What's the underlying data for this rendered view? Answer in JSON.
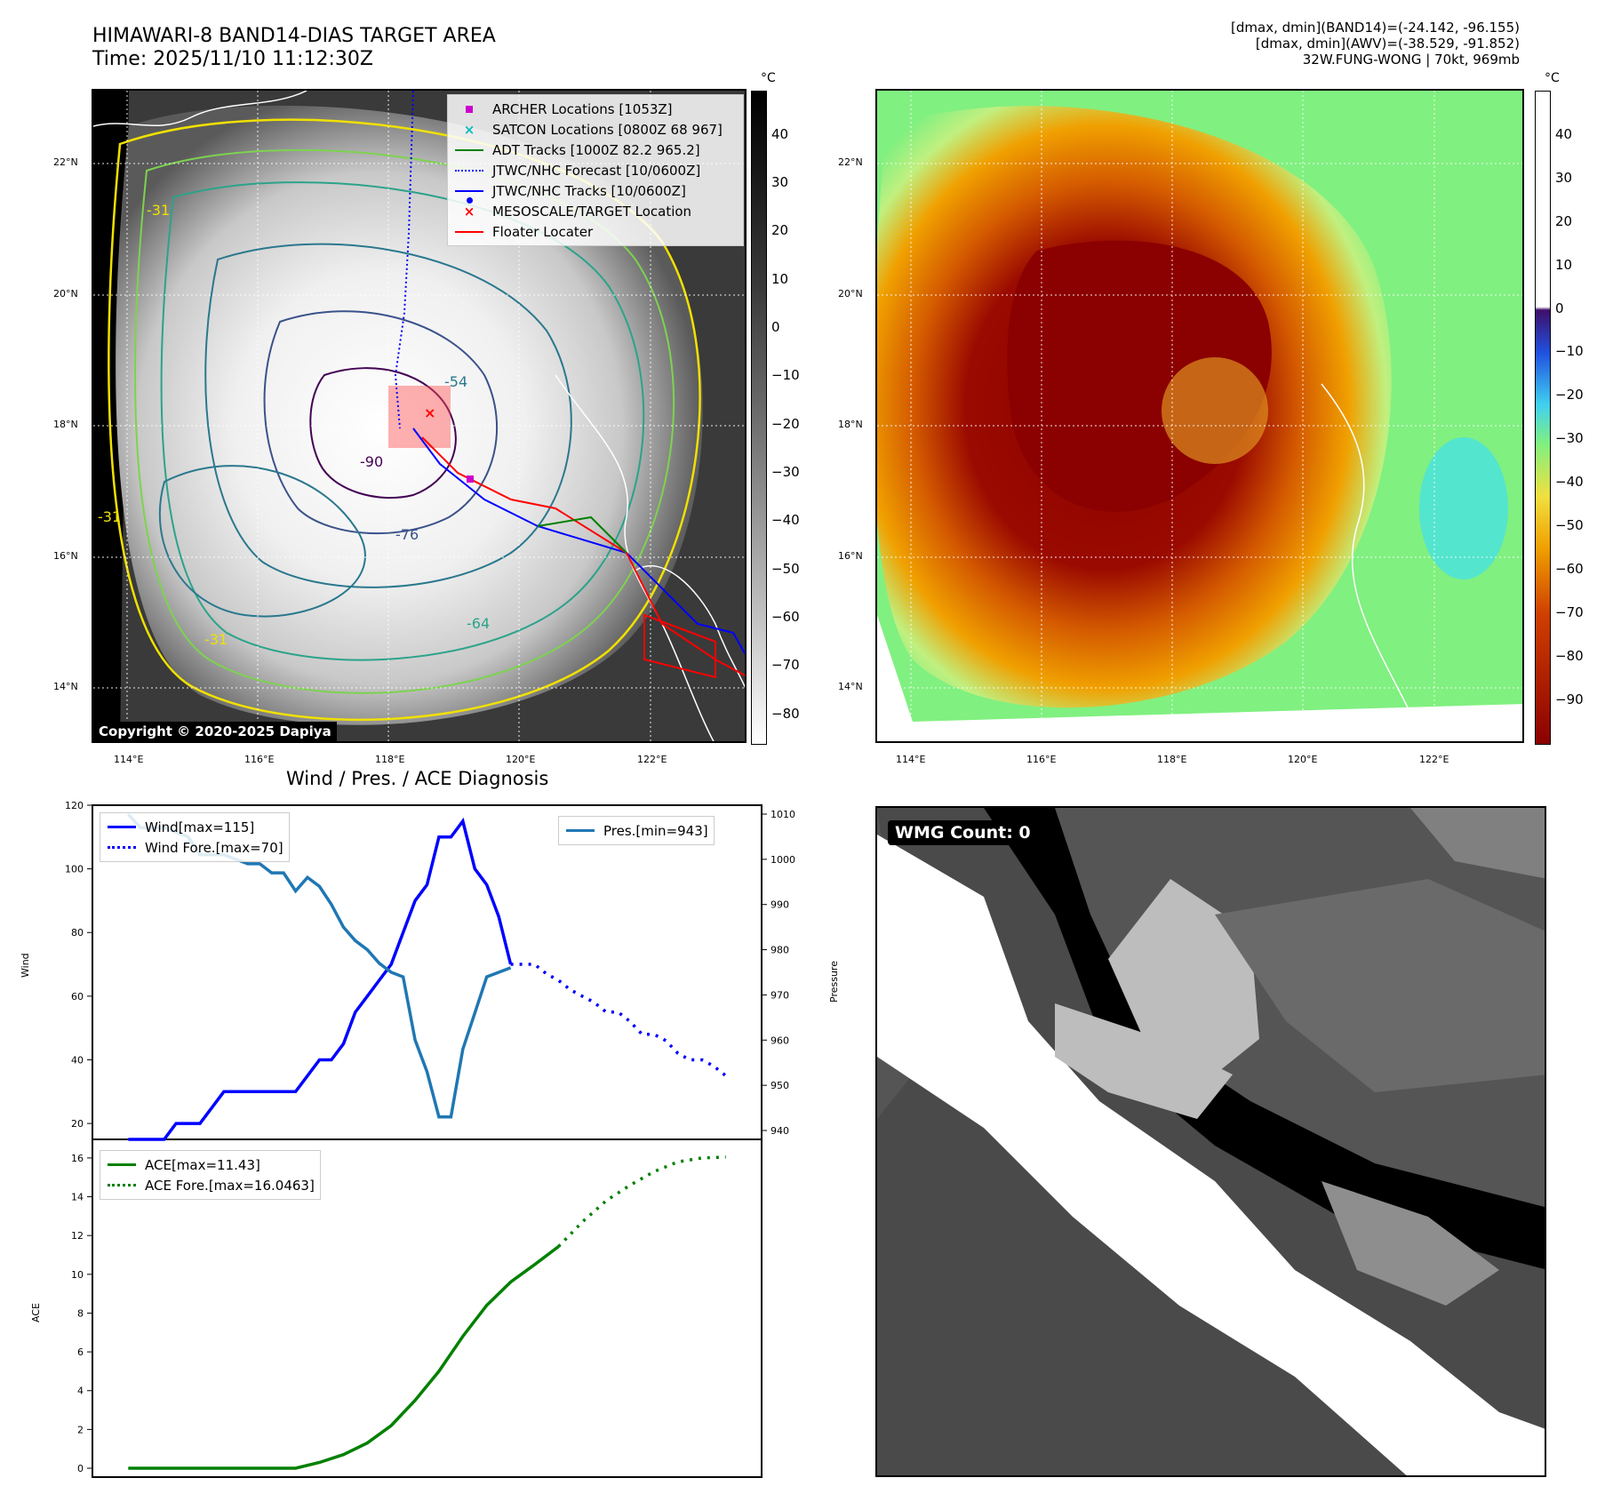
{
  "header": {
    "title_line1": "HIMAWARI-8 BAND14-DIAS TARGET AREA",
    "title_line2": "Time: 2025/11/10 11:12:30Z",
    "info_line1": "[dmax, dmin](BAND14)=(-24.142, -96.155)",
    "info_line2": "[dmax, dmin](AWV)=(-38.529, -91.852)",
    "info_line3": "32W.FUNG-WONG | 70kt, 969mb"
  },
  "map_axes": {
    "lat_labels": [
      "22°N",
      "20°N",
      "18°N",
      "16°N",
      "14°N"
    ],
    "lon_labels": [
      "114°E",
      "116°E",
      "118°E",
      "120°E",
      "122°E"
    ]
  },
  "left_map": {
    "colorbar_unit": "°C",
    "colorbar_ticks": [
      "40",
      "30",
      "20",
      "10",
      "0",
      "−10",
      "−20",
      "−30",
      "−40",
      "−50",
      "−60",
      "−70",
      "−80"
    ],
    "contour_labels": [
      "-31",
      "-54",
      "-76",
      "-90",
      "-64",
      "-31",
      "-31"
    ],
    "copyright": "Copyright © 2020-2025 Dapiya",
    "legend": [
      {
        "label": "ARCHER Locations [1053Z]",
        "color": "#cc00cc",
        "marker": "square"
      },
      {
        "label": "SATCON Locations [0800Z 68 967]",
        "color": "#00bbbb",
        "marker": "x"
      },
      {
        "label": "ADT Tracks [1000Z 82.2 965.2]",
        "color": "#008000",
        "marker": "line"
      },
      {
        "label": "JTWC/NHC Forecast [10/0600Z]",
        "color": "#0000ff",
        "marker": "dotted"
      },
      {
        "label": "JTWC/NHC Tracks [10/0600Z]",
        "color": "#0000ff",
        "marker": "line-dot"
      },
      {
        "label": "MESOSCALE/TARGET Location",
        "color": "#ff0000",
        "marker": "x"
      },
      {
        "label": "Floater Locater",
        "color": "#ff0000",
        "marker": "line"
      }
    ]
  },
  "right_map": {
    "colorbar_unit": "°C",
    "colorbar_ticks": [
      "40",
      "30",
      "20",
      "10",
      "0",
      "−10",
      "−20",
      "−30",
      "−40",
      "−50",
      "−60",
      "−70",
      "−80",
      "−90"
    ]
  },
  "diagnosis": {
    "title": "Wind / Pres. / ACE Diagnosis",
    "wind_axis_label": "Wind",
    "pressure_axis_label": "Pressure",
    "ace_axis_label": "ACE",
    "wind_ticks": [
      "120",
      "100",
      "80",
      "60",
      "40",
      "20"
    ],
    "pressure_ticks": [
      "1010",
      "1000",
      "990",
      "980",
      "970",
      "960",
      "950",
      "940"
    ],
    "ace_ticks": [
      "16",
      "14",
      "12",
      "10",
      "8",
      "6",
      "4",
      "2",
      "0"
    ],
    "legend_wind": "Wind[max=115]",
    "legend_wind_fore": "Wind Fore.[max=70]",
    "legend_pres": "Pres.[min=943]",
    "legend_ace": "ACE[max=11.43]",
    "legend_ace_fore": "ACE Fore.[max=16.0463]"
  },
  "wmg": {
    "label": "WMG Count: 0"
  },
  "chart_data": [
    {
      "type": "line",
      "title": "Wind / Pres. / ACE Diagnosis",
      "ylabel": "Wind",
      "ylim": [
        15,
        120
      ],
      "x": [
        0,
        1,
        2,
        3,
        4,
        5,
        6,
        7,
        8,
        9,
        10,
        11,
        12,
        13,
        14,
        15,
        16,
        17,
        18,
        19,
        20,
        21,
        22,
        23,
        24,
        25,
        26,
        27,
        28,
        29,
        30,
        31,
        32,
        33,
        34,
        35,
        36,
        37,
        38,
        39,
        40,
        41,
        42,
        43,
        44,
        45,
        46,
        47,
        48,
        49,
        50
      ],
      "series": [
        {
          "name": "Wind[max=115]",
          "color": "#0000ff",
          "values": [
            15,
            15,
            15,
            15,
            20,
            20,
            20,
            25,
            30,
            30,
            30,
            30,
            30,
            30,
            30,
            35,
            40,
            40,
            45,
            55,
            60,
            65,
            70,
            80,
            90,
            95,
            110,
            110,
            115,
            100,
            95,
            85,
            70,
            null,
            null,
            null,
            null,
            null,
            null,
            null,
            null,
            null,
            null,
            null,
            null,
            null,
            null,
            null,
            null,
            null,
            null
          ]
        },
        {
          "name": "Wind Fore.[max=70]",
          "color": "#0000ff",
          "style": "dotted",
          "values": [
            null,
            null,
            null,
            null,
            null,
            null,
            null,
            null,
            null,
            null,
            null,
            null,
            null,
            null,
            null,
            null,
            null,
            null,
            null,
            null,
            null,
            null,
            null,
            null,
            null,
            null,
            null,
            null,
            null,
            null,
            null,
            null,
            70,
            70,
            70,
            67,
            65,
            62,
            60,
            58,
            55,
            55,
            52,
            48,
            48,
            46,
            42,
            40,
            40,
            38,
            35
          ]
        }
      ]
    },
    {
      "type": "line",
      "ylabel": "Pressure",
      "ylim": [
        940,
        1010
      ],
      "x": [
        0,
        1,
        2,
        3,
        4,
        5,
        6,
        7,
        8,
        9,
        10,
        11,
        12,
        13,
        14,
        15,
        16,
        17,
        18,
        19,
        20,
        21,
        22,
        23,
        24,
        25,
        26,
        27,
        28,
        29,
        30,
        31,
        32
      ],
      "series": [
        {
          "name": "Pres.[min=943]",
          "color": "#1f77b4",
          "values": [
            1010,
            1007,
            1007,
            1007,
            1006,
            1005,
            1001,
            1001,
            1001,
            1000,
            999,
            999,
            997,
            997,
            993,
            996,
            994,
            990,
            985,
            982,
            980,
            977,
            975,
            974,
            960,
            953,
            943,
            943,
            958,
            966,
            974,
            975,
            976
          ]
        }
      ]
    },
    {
      "type": "line",
      "ylabel": "ACE",
      "ylim": [
        0,
        16.5
      ],
      "x": [
        0,
        2,
        4,
        6,
        8,
        10,
        12,
        14,
        16,
        18,
        20,
        22,
        24,
        26,
        28,
        30,
        32,
        34,
        36,
        38,
        40,
        42,
        44,
        46,
        48,
        50
      ],
      "series": [
        {
          "name": "ACE[max=11.43]",
          "color": "#008000",
          "values": [
            0,
            0,
            0,
            0,
            0,
            0,
            0,
            0,
            0.3,
            0.7,
            1.3,
            2.2,
            3.5,
            5.0,
            6.8,
            8.4,
            9.6,
            10.5,
            11.43,
            null,
            null,
            null,
            null,
            null,
            null,
            null
          ]
        },
        {
          "name": "ACE Fore.[max=16.0463]",
          "color": "#008000",
          "style": "dotted",
          "values": [
            null,
            null,
            null,
            null,
            null,
            null,
            null,
            null,
            null,
            null,
            null,
            null,
            null,
            null,
            null,
            null,
            null,
            null,
            11.43,
            12.7,
            13.8,
            14.6,
            15.3,
            15.8,
            16.0,
            16.0463
          ]
        }
      ]
    }
  ]
}
